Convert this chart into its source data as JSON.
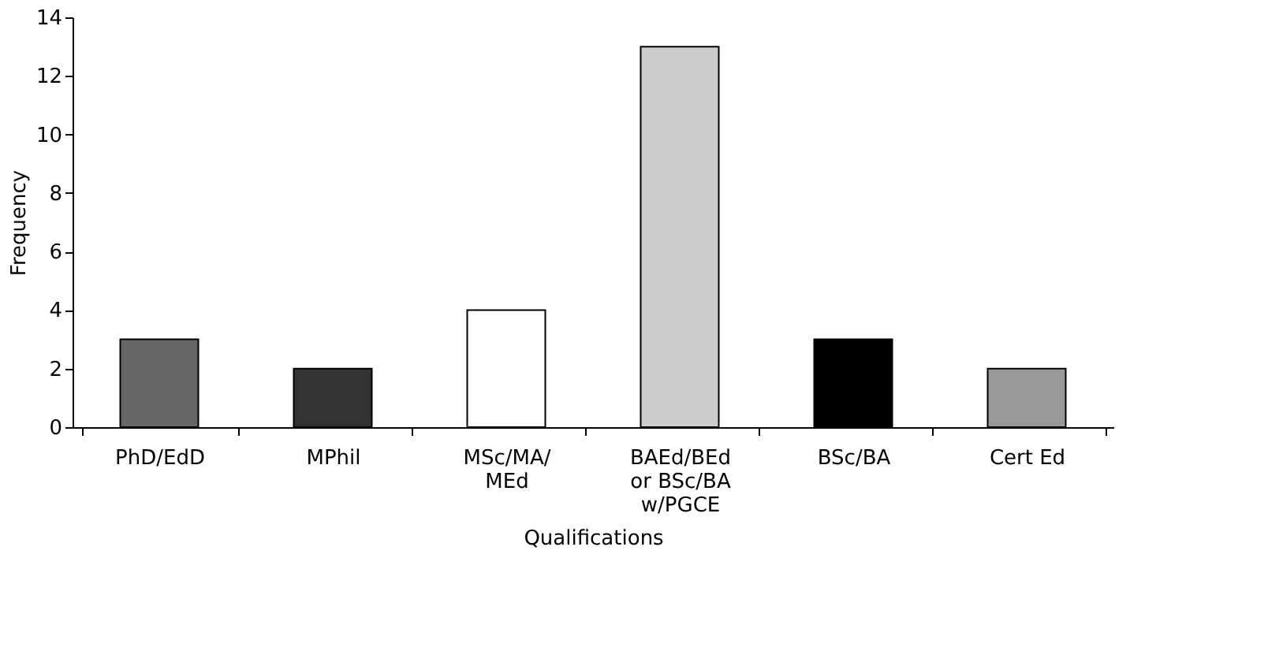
{
  "chart_data": {
    "type": "bar",
    "xlabel": "Qualifications",
    "ylabel": "Frequency",
    "categories": [
      "PhD/EdD",
      "MPhil",
      "MSc/MA/\nMEd",
      "BAEd/BEd\nor BSc/BA\nw/PGCE",
      "BSc/BA",
      "Cert Ed"
    ],
    "values": [
      3,
      2,
      4,
      13,
      3,
      2
    ],
    "colors": [
      "#666666",
      "#333333",
      "#ffffff",
      "#cccccc",
      "#000000",
      "#999999"
    ],
    "ylim": [
      0,
      14
    ],
    "yticks": [
      0,
      2,
      4,
      6,
      8,
      10,
      12,
      14
    ],
    "grid": false
  }
}
